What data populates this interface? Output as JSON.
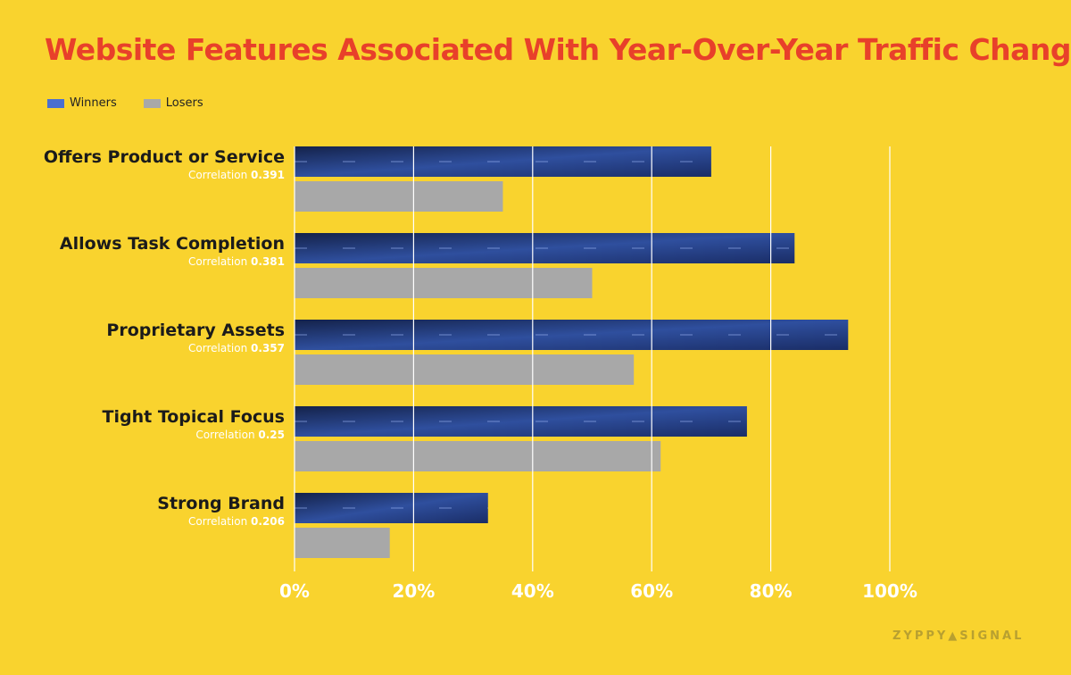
{
  "chart_data": {
    "type": "bar",
    "orientation": "horizontal",
    "title": "Website Features Associated With Year-Over-Year Traffic Change",
    "categories": [
      "Offers Product or Service",
      "Allows Task Completion",
      "Proprietary Assets",
      "Tight Topical Focus",
      "Strong Brand"
    ],
    "correlation_label": "Correlation",
    "correlations": [
      "0.391",
      "0.381",
      "0.357",
      "0.25",
      "0.206"
    ],
    "series": [
      {
        "name": "Winners",
        "values": [
          70,
          84,
          93,
          76,
          32.5
        ],
        "color": "#4a6fd0"
      },
      {
        "name": "Losers",
        "values": [
          35,
          50,
          57,
          61.5,
          16
        ],
        "color": "#a8a8a8"
      }
    ],
    "xlim": [
      0,
      100
    ],
    "xticks": [
      "0%",
      "20%",
      "40%",
      "60%",
      "80%",
      "100%"
    ],
    "grid": true,
    "legend": "top-left"
  },
  "logo": "ZYPPY SIGNAL"
}
